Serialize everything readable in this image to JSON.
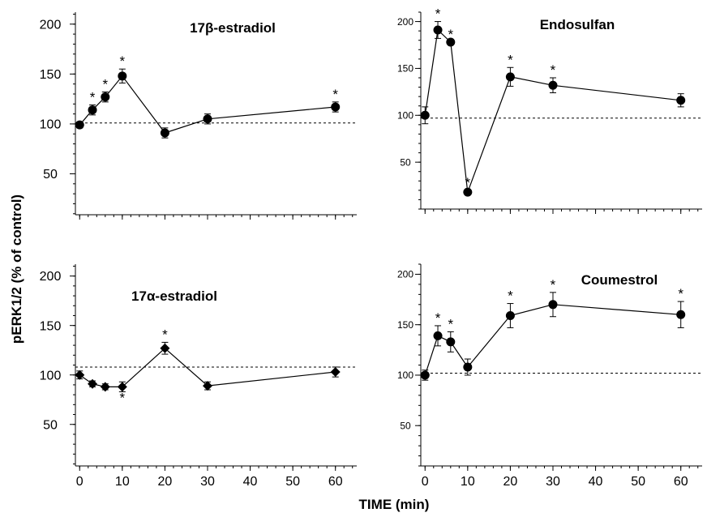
{
  "figure": {
    "ylabel": "pERK1/2 (% of control)",
    "xlabel": "TIME (min)"
  },
  "chart_data": [
    {
      "type": "line",
      "title": "17β-estradiol",
      "marker": "circle",
      "x": [
        0,
        3,
        6,
        10,
        20,
        30,
        60
      ],
      "y": [
        99,
        114,
        127,
        148,
        91,
        105,
        117
      ],
      "err": [
        3,
        5,
        5,
        7,
        5,
        5,
        5
      ],
      "significant": [
        false,
        true,
        true,
        true,
        false,
        false,
        true
      ],
      "reference_line": 101,
      "yticks": [
        50,
        100,
        150,
        200
      ],
      "ylim": [
        9,
        212
      ],
      "xlim": [
        -1,
        65
      ],
      "xticks": [
        0,
        10,
        20,
        30,
        40,
        50,
        60
      ],
      "show_xtick_labels": false
    },
    {
      "type": "line",
      "title": "Endosulfan",
      "marker": "circle",
      "x": [
        0,
        3,
        6,
        10,
        20,
        30,
        60
      ],
      "y": [
        100,
        191,
        178,
        18,
        141,
        132,
        116
      ],
      "err": [
        9,
        9,
        0,
        2,
        10,
        8,
        7
      ],
      "significant": [
        false,
        true,
        true,
        true,
        true,
        true,
        false
      ],
      "reference_line": 97,
      "yticks": [
        50,
        100,
        150,
        200
      ],
      "ylim": [
        0,
        210
      ],
      "xlim": [
        -1,
        65
      ],
      "xticks": [
        0,
        10,
        20,
        30,
        40,
        50,
        60
      ],
      "show_xtick_labels": false
    },
    {
      "type": "line",
      "title": "17α-estradiol",
      "marker": "diamond",
      "x": [
        0,
        3,
        6,
        10,
        20,
        30,
        60
      ],
      "y": [
        100,
        91,
        88,
        88,
        127,
        89,
        103
      ],
      "err": [
        4,
        3,
        3,
        5,
        6,
        4,
        5
      ],
      "significant": [
        false,
        false,
        false,
        true,
        true,
        false,
        false
      ],
      "star_below": [
        false,
        false,
        false,
        true,
        false,
        false,
        false
      ],
      "reference_line": 108,
      "yticks": [
        50,
        100,
        150,
        200
      ],
      "ylim": [
        8,
        212
      ],
      "xlim": [
        -1,
        65
      ],
      "xticks": [
        0,
        10,
        20,
        30,
        40,
        50,
        60
      ],
      "show_xtick_labels": true
    },
    {
      "type": "line",
      "title": "Coumestrol",
      "marker": "circle",
      "x": [
        0,
        3,
        6,
        10,
        20,
        30,
        60
      ],
      "y": [
        100,
        139,
        133,
        108,
        159,
        170,
        160
      ],
      "err": [
        5,
        10,
        10,
        8,
        12,
        12,
        13
      ],
      "significant": [
        false,
        true,
        true,
        false,
        true,
        true,
        true
      ],
      "reference_line": 102,
      "yticks": [
        50,
        100,
        150,
        200
      ],
      "ylim": [
        10,
        210
      ],
      "xlim": [
        -1,
        65
      ],
      "xticks": [
        0,
        10,
        20,
        30,
        40,
        50,
        60
      ],
      "show_xtick_labels": true
    }
  ]
}
